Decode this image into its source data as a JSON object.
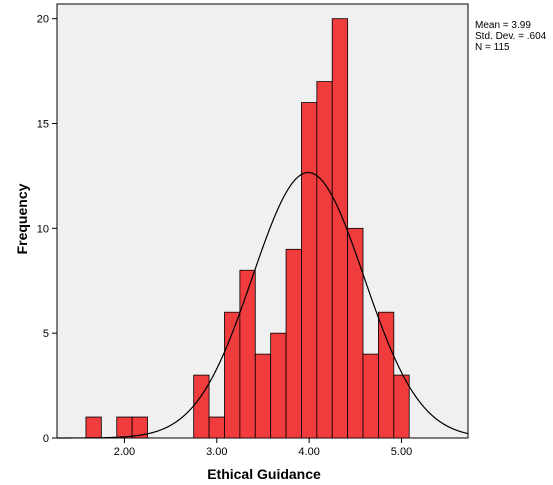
{
  "chart_data": {
    "type": "bar",
    "variant": "histogram",
    "xlabel": "Ethical Guidance",
    "ylabel": "Frequency",
    "xlim": [
      1.27,
      5.72
    ],
    "ylim": [
      0,
      20.7
    ],
    "x_ticks": [
      2.0,
      3.0,
      4.0,
      5.0
    ],
    "x_tick_labels": [
      "2.00",
      "3.00",
      "4.00",
      "5.00"
    ],
    "y_ticks": [
      0,
      5,
      10,
      15,
      20
    ],
    "y_tick_labels": [
      "0",
      "5",
      "10",
      "15",
      "20"
    ],
    "bin_width": 0.1667,
    "bins": [
      {
        "x0": 1.5833,
        "x1": 1.75,
        "count": 1
      },
      {
        "x0": 1.9167,
        "x1": 2.0833,
        "count": 1
      },
      {
        "x0": 2.0833,
        "x1": 2.25,
        "count": 1
      },
      {
        "x0": 2.75,
        "x1": 2.9167,
        "count": 3
      },
      {
        "x0": 2.9167,
        "x1": 3.0833,
        "count": 1
      },
      {
        "x0": 3.0833,
        "x1": 3.25,
        "count": 6
      },
      {
        "x0": 3.25,
        "x1": 3.4167,
        "count": 8
      },
      {
        "x0": 3.4167,
        "x1": 3.5833,
        "count": 4
      },
      {
        "x0": 3.5833,
        "x1": 3.75,
        "count": 5
      },
      {
        "x0": 3.75,
        "x1": 3.9167,
        "count": 9
      },
      {
        "x0": 3.9167,
        "x1": 4.0833,
        "count": 16
      },
      {
        "x0": 4.0833,
        "x1": 4.25,
        "count": 17
      },
      {
        "x0": 4.25,
        "x1": 4.4167,
        "count": 20
      },
      {
        "x0": 4.4167,
        "x1": 4.5833,
        "count": 10
      },
      {
        "x0": 4.5833,
        "x1": 4.75,
        "count": 4
      },
      {
        "x0": 4.75,
        "x1": 4.9167,
        "count": 6
      },
      {
        "x0": 4.9167,
        "x1": 5.0833,
        "count": 3
      }
    ],
    "normal_curve": {
      "mean": 3.99,
      "sd": 0.604,
      "n": 115
    },
    "grid": false,
    "colors": {
      "bar": "#f03c3c",
      "bar_stroke": "#000000",
      "plot_bg": "#f0f0f0",
      "curve": "#000000"
    }
  },
  "stats": {
    "mean": "Mean = 3.99",
    "sd": "Std. Dev. = .604",
    "n": "N = 115"
  }
}
